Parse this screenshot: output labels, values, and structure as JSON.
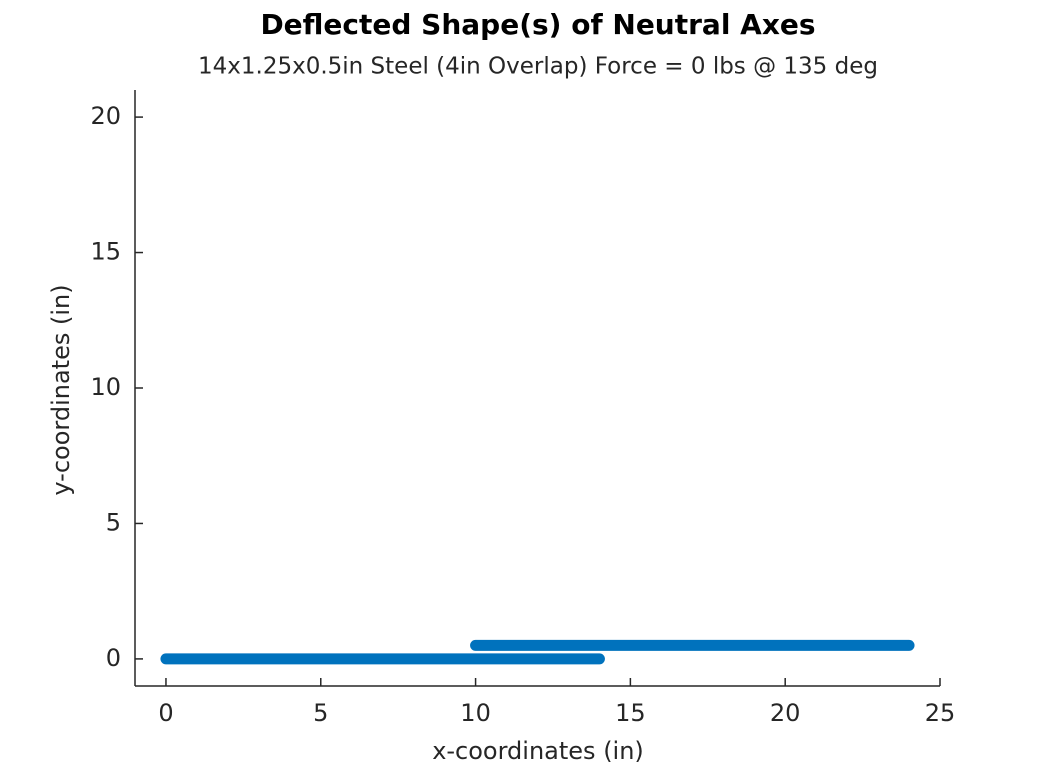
{
  "chart_data": {
    "type": "line",
    "title": "Deflected Shape(s) of Neutral Axes",
    "subtitle": "14x1.25x0.5in Steel (4in Overlap) Force = 0 lbs @ 135 deg",
    "x_label": "x-coordinates (in)",
    "y_label": "y-coordinates (in)",
    "series": [
      {
        "x": [
          0,
          14
        ],
        "values": [
          0,
          0
        ],
        "color": "#0072bd"
      },
      {
        "x": [
          10,
          24
        ],
        "values": [
          0.5,
          0.5
        ],
        "color": "#0072bd"
      }
    ],
    "xlim": [
      -1,
      25
    ],
    "xticks": [
      0,
      5,
      10,
      15,
      20,
      25
    ],
    "ylim": [
      -1,
      21
    ],
    "yticks": [
      0,
      5,
      10,
      15,
      20
    ],
    "grid": false
  }
}
